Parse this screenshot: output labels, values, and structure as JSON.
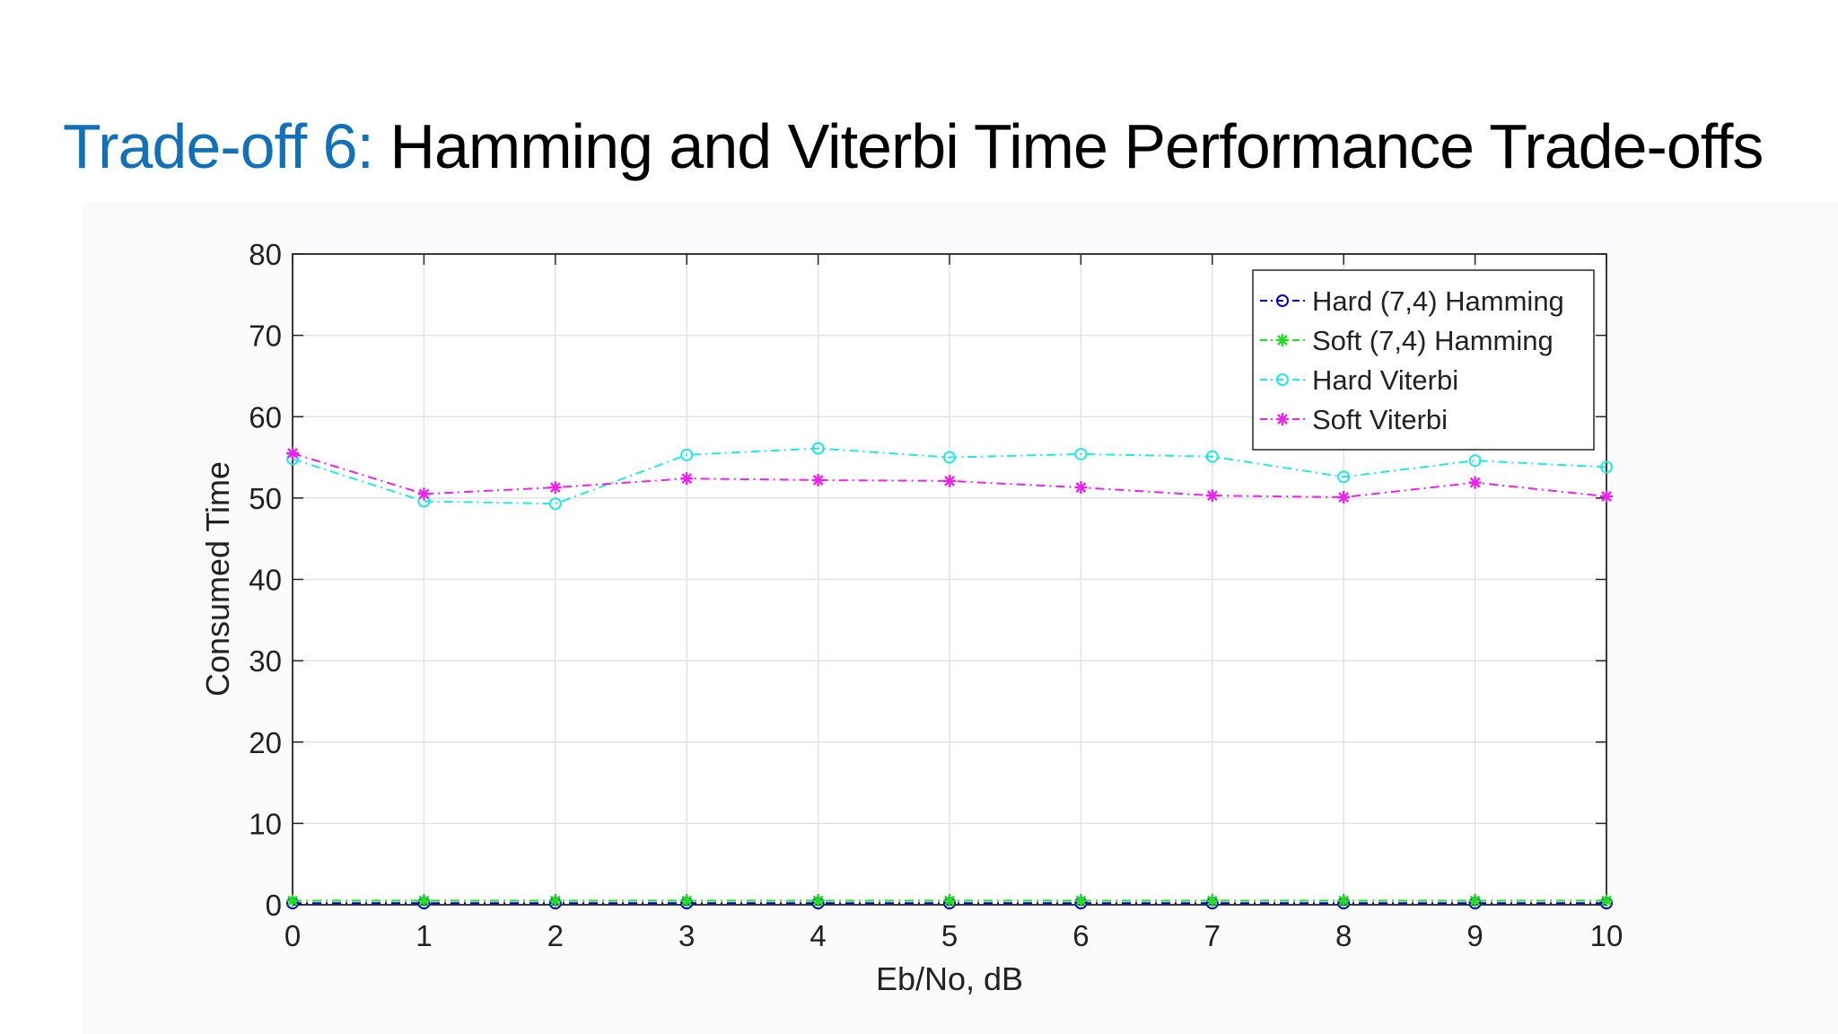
{
  "slide": {
    "title_accent": "Trade-off 6:",
    "title_main": "Hamming and Viterbi Time Performance Trade-offs",
    "title_accent_color": "#1170B8"
  },
  "chart_data": {
    "type": "line",
    "title": "",
    "xlabel": "Eb/No, dB",
    "ylabel": "Consumed Time",
    "x": [
      0,
      1,
      2,
      3,
      4,
      5,
      6,
      7,
      8,
      9,
      10
    ],
    "xlim": [
      0,
      10
    ],
    "ylim": [
      0,
      80
    ],
    "xticks": [
      "0",
      "1",
      "2",
      "3",
      "4",
      "5",
      "6",
      "7",
      "8",
      "9",
      "10"
    ],
    "yticks": [
      "0",
      "10",
      "20",
      "30",
      "40",
      "50",
      "60",
      "70",
      "80"
    ],
    "grid": true,
    "legend_position": "top-right",
    "series": [
      {
        "name": "Hard (7,4) Hamming",
        "color": "#0000CC",
        "marker": "circle",
        "line_style": "dash-dot",
        "values": [
          0.2,
          0.2,
          0.2,
          0.2,
          0.2,
          0.2,
          0.2,
          0.2,
          0.2,
          0.2,
          0.2
        ]
      },
      {
        "name": "Soft (7,4) Hamming",
        "color": "#22DD22",
        "marker": "asterisk",
        "line_style": "dash-dot",
        "values": [
          0.5,
          0.5,
          0.5,
          0.5,
          0.5,
          0.5,
          0.5,
          0.5,
          0.5,
          0.5,
          0.5
        ]
      },
      {
        "name": "Hard Viterbi",
        "color": "#22E8E8",
        "marker": "circle",
        "line_style": "dash-dot",
        "values": [
          54.8,
          49.6,
          49.3,
          55.3,
          56.1,
          55.0,
          55.4,
          55.1,
          52.6,
          54.6,
          53.8
        ]
      },
      {
        "name": "Soft Viterbi",
        "color": "#EE22EE",
        "marker": "asterisk",
        "line_style": "dash-dot",
        "values": [
          55.5,
          50.5,
          51.3,
          52.4,
          52.2,
          52.1,
          51.3,
          50.3,
          50.1,
          51.9,
          50.2
        ]
      }
    ]
  }
}
